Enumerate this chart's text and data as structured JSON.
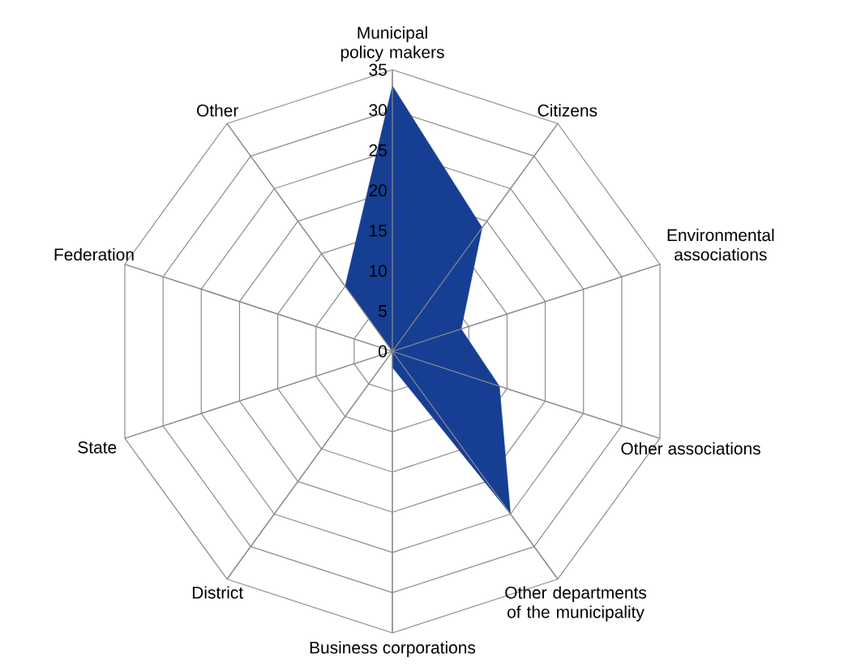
{
  "chart_data": {
    "type": "radar",
    "categories": [
      "Municipal policy makers",
      "Citizens",
      "Environmental associations",
      "Other associations",
      "Other departments of the municipality",
      "Business corporations",
      "District",
      "State",
      "Federation",
      "Other"
    ],
    "series": [
      {
        "color": "#163f94",
        "values": [
          33,
          19,
          9,
          14,
          25,
          2,
          0,
          0,
          0,
          10
        ]
      }
    ],
    "ylim": [
      0,
      35
    ],
    "yticks": [
      0,
      5,
      10,
      15,
      20,
      25,
      30,
      35
    ],
    "grid": true
  }
}
